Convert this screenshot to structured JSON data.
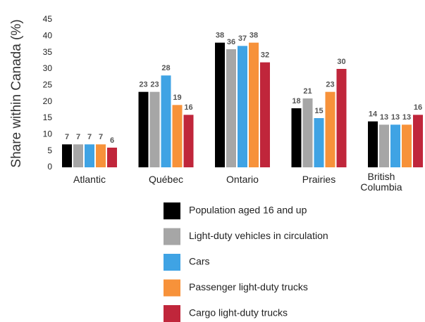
{
  "chart_data": {
    "type": "bar",
    "y_label": "Share within Canada (%)",
    "categories": [
      "Atlantic",
      "Québec",
      "Ontario",
      "Prairies",
      "British Columbia"
    ],
    "series": [
      {
        "name": "Population aged 16 and up",
        "color": "#000000",
        "values": [
          7,
          23,
          38,
          18,
          14
        ]
      },
      {
        "name": "Light-duty vehicles in circulation",
        "color": "#a6a6a6",
        "values": [
          7,
          23,
          36,
          21,
          13
        ]
      },
      {
        "name": "Cars",
        "color": "#3fa3e4",
        "values": [
          7,
          28,
          37,
          15,
          13
        ]
      },
      {
        "name": "Passenger light-duty trucks",
        "color": "#f7923a",
        "values": [
          7,
          19,
          38,
          23,
          13
        ]
      },
      {
        "name": "Cargo light-duty trucks",
        "color": "#c0263b",
        "values": [
          6,
          16,
          32,
          30,
          16
        ]
      }
    ],
    "ylim": [
      0,
      45
    ],
    "yticks": [
      0,
      5,
      10,
      15,
      20,
      25,
      30,
      35,
      40,
      45
    ],
    "grid": false
  }
}
